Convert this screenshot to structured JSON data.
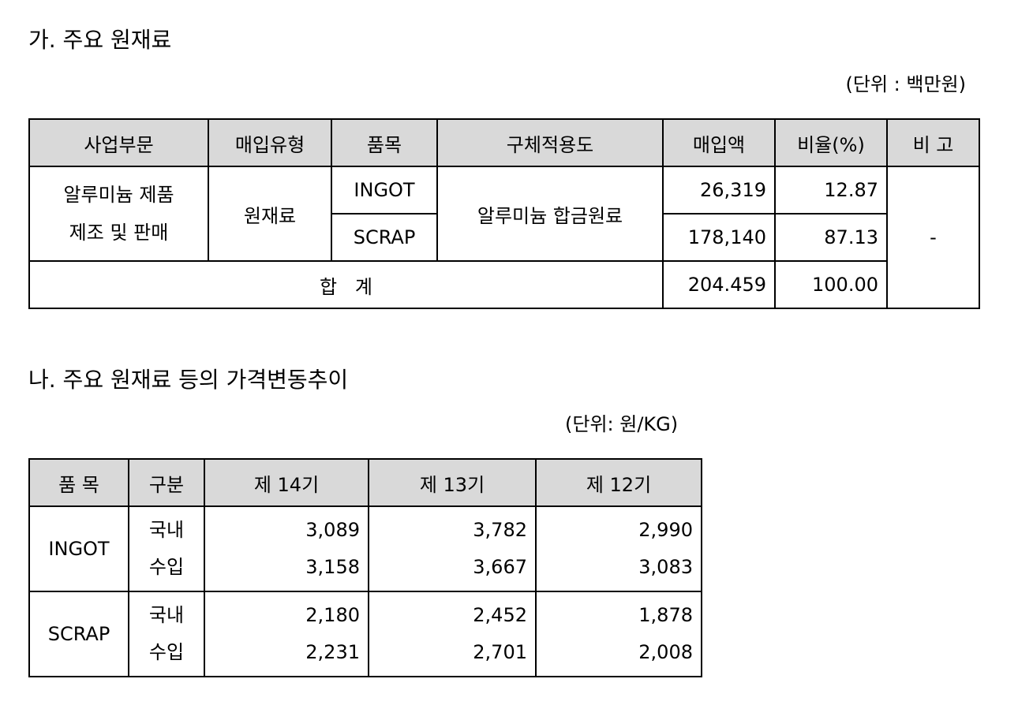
{
  "section_a": {
    "title": "가. 주요 원재료",
    "unit": "(단위 : 백만원)",
    "headers": [
      "사업부문",
      "매입유형",
      "품목",
      "구체적용도",
      "매입액",
      "비율(%)",
      "비  고"
    ],
    "business_line": [
      "알루미늄 제품",
      "제조 및 판매"
    ],
    "purchase_type": "원재료",
    "usage": "알루미늄 합금원료",
    "remark": "-",
    "rows": [
      {
        "item": "INGOT",
        "amount": "26,319",
        "ratio": "12.87"
      },
      {
        "item": "SCRAP",
        "amount": "178,140",
        "ratio": "87.13"
      }
    ],
    "total": {
      "label": "합   계",
      "amount": "204.459",
      "ratio": "100.00"
    }
  },
  "section_b": {
    "title": "나. 주요 원재료 등의 가격변동추이",
    "unit": "(단위: 원/KG)",
    "headers": [
      "품 목",
      "구분",
      "제 14기",
      "제 13기",
      "제 12기"
    ],
    "items": [
      {
        "name": "INGOT",
        "types": [
          "국내",
          "수입"
        ],
        "p14": [
          "3,089",
          "3,158"
        ],
        "p13": [
          "3,782",
          "3,667"
        ],
        "p12": [
          "2,990",
          "3,083"
        ]
      },
      {
        "name": "SCRAP",
        "types": [
          "국내",
          "수입"
        ],
        "p14": [
          "2,180",
          "2,231"
        ],
        "p13": [
          "2,452",
          "2,701"
        ],
        "p12": [
          "1,878",
          "2,008"
        ]
      }
    ]
  }
}
